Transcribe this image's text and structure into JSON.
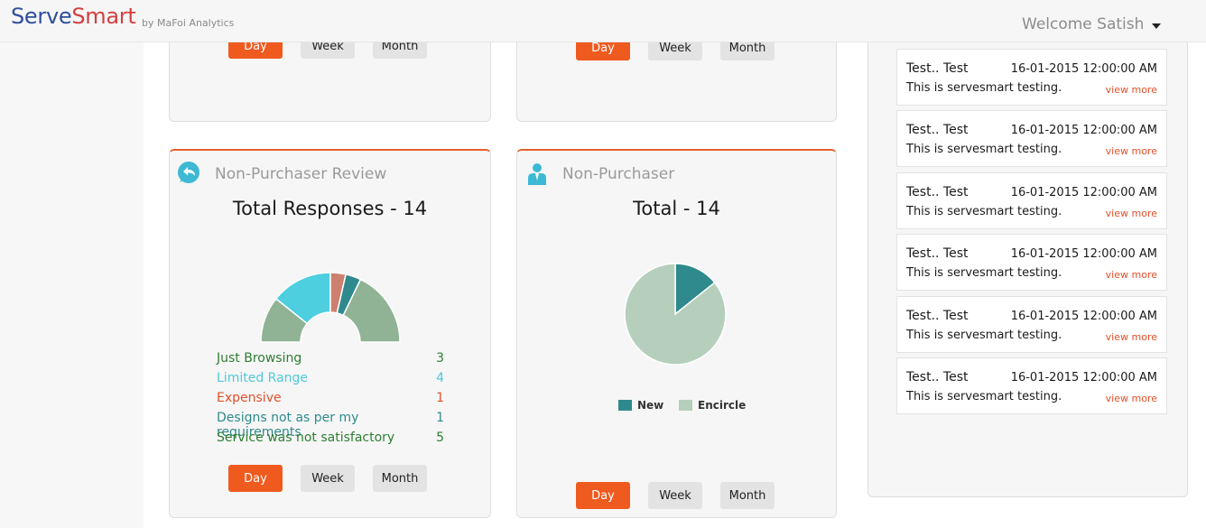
{
  "header": {
    "brand_serve": "Serve",
    "brand_smart": "Smart",
    "tagline": "by MaFoi Analytics",
    "welcome": "Welcome Satish"
  },
  "period_buttons": {
    "day": "Day",
    "week": "Week",
    "month": "Month"
  },
  "review_card": {
    "title": "Non-Purchaser Review",
    "total": "Total Responses - 14",
    "reasons": [
      {
        "label": "Just Browsing",
        "count": "3",
        "color": "#2e7d32"
      },
      {
        "label": "Limited Range",
        "count": "4",
        "color": "#4ec9db"
      },
      {
        "label": "Expensive",
        "count": "1",
        "color": "#e2502a"
      },
      {
        "label": "Designs not as per my requirements",
        "count": "1",
        "color": "#2e8a8c"
      },
      {
        "label": "Service was not satisfactory",
        "count": "5",
        "color": "#2e7d32"
      }
    ]
  },
  "purchaser_card": {
    "title": "Non-Purchaser",
    "total": "Total - 14",
    "legend": [
      {
        "label": "New",
        "color": "#2e8a8c"
      },
      {
        "label": "Encircle",
        "color": "#b5cfbc"
      }
    ]
  },
  "chart_data": [
    {
      "type": "pie",
      "variant": "semi-donut",
      "categories": [
        "Just Browsing",
        "Limited Range",
        "Expensive",
        "Designs not as per my requirements",
        "Service was not satisfactory"
      ],
      "values": [
        3,
        4,
        1,
        1,
        5
      ],
      "colors": [
        "#8fb394",
        "#4ecfe0",
        "#cc8070",
        "#2e8a8c",
        "#8fb394"
      ]
    },
    {
      "type": "pie",
      "categories": [
        "New",
        "Encircle"
      ],
      "values": [
        2,
        12
      ],
      "colors": [
        "#2e8a8c",
        "#b5cfbc"
      ]
    }
  ],
  "notifications": [
    {
      "title": "Test.. Test",
      "date": "16-01-2015 12:00:00 AM",
      "body": "This is servesmart testing.",
      "link": "view more"
    },
    {
      "title": "Test.. Test",
      "date": "16-01-2015 12:00:00 AM",
      "body": "This is servesmart testing.",
      "link": "view more"
    },
    {
      "title": "Test.. Test",
      "date": "16-01-2015 12:00:00 AM",
      "body": "This is servesmart testing.",
      "link": "view more"
    },
    {
      "title": "Test.. Test",
      "date": "16-01-2015 12:00:00 AM",
      "body": "This is servesmart testing.",
      "link": "view more"
    },
    {
      "title": "Test.. Test",
      "date": "16-01-2015 12:00:00 AM",
      "body": "This is servesmart testing.",
      "link": "view more"
    },
    {
      "title": "Test.. Test",
      "date": "16-01-2015 12:00:00 AM",
      "body": "This is servesmart testing.",
      "link": "view more"
    }
  ]
}
